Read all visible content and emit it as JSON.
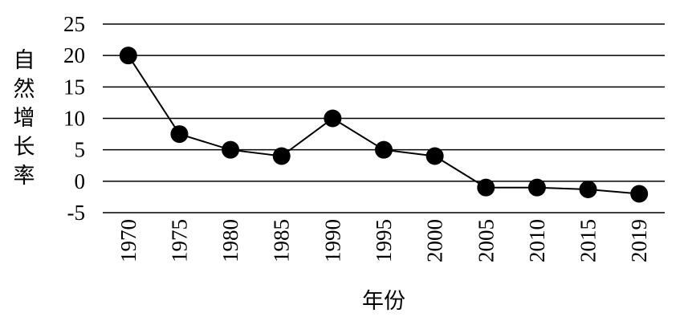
{
  "chart_data": {
    "type": "line",
    "title": "",
    "xlabel": "年份",
    "ylabel": "自然增长率",
    "categories": [
      "1970",
      "1975",
      "1980",
      "1985",
      "1990",
      "1995",
      "2000",
      "2005",
      "2010",
      "2015",
      "2019"
    ],
    "series": [
      {
        "values": [
          20,
          7.5,
          5,
          4,
          10,
          5,
          4,
          -1,
          -1,
          -1.3,
          -2
        ]
      }
    ],
    "ylim": [
      -5,
      25
    ],
    "yticks": [
      -5,
      0,
      5,
      10,
      15,
      20,
      25
    ],
    "grid": true,
    "legend": "none",
    "colors": {
      "line": "#000000",
      "marker": "#000000",
      "grid": "#000000"
    }
  }
}
